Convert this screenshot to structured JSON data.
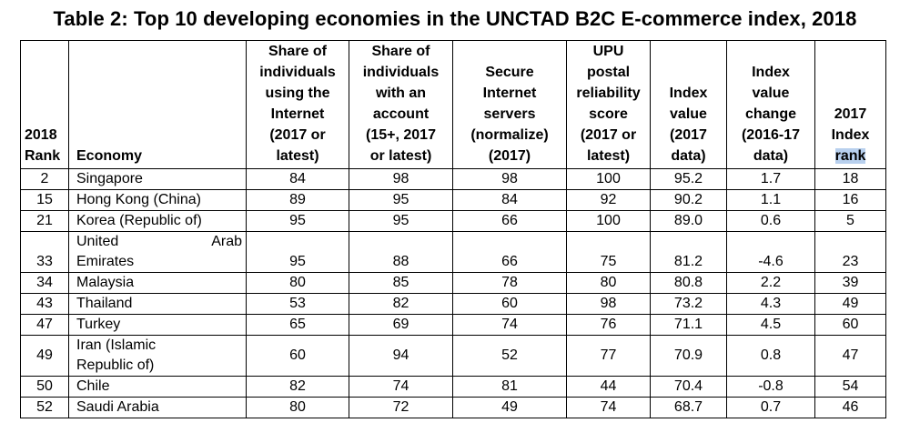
{
  "title": "Table 2: Top 10 developing economies in the UNCTAD B2C E-commerce index, 2018",
  "headers": {
    "rank_2018": [
      "2018",
      "Rank"
    ],
    "economy": "Economy",
    "internet_share": [
      "Share of",
      "individuals",
      "using the",
      "Internet",
      "(2017 or",
      "latest)"
    ],
    "account_share": [
      "Share of",
      "individuals",
      "with an",
      "account",
      "(15+, 2017",
      "or latest)"
    ],
    "secure_servers": [
      "Secure",
      "Internet",
      "servers",
      "(normalize)",
      "(2017)"
    ],
    "upu_score": [
      "UPU",
      "postal",
      "reliability",
      "score",
      "(2017 or",
      "latest)"
    ],
    "index_value": [
      "Index",
      "value",
      "(2017",
      "data)"
    ],
    "index_change": [
      "Index",
      "value",
      "change",
      "(2016-17",
      "data)"
    ],
    "rank_2017": [
      "2017",
      "Index"
    ],
    "rank_2017_highlight": "rank"
  },
  "rows": [
    {
      "rank": "2",
      "economy": [
        "Singapore"
      ],
      "internet": "84",
      "account": "98",
      "servers": "98",
      "upu": "100",
      "index": "95.2",
      "change": "1.7",
      "rank2017": "18"
    },
    {
      "rank": "15",
      "economy": [
        "Hong Kong (China)"
      ],
      "internet": "89",
      "account": "95",
      "servers": "84",
      "upu": "92",
      "index": "90.2",
      "change": "1.1",
      "rank2017": "16"
    },
    {
      "rank": "21",
      "economy": [
        "Korea (Republic of)"
      ],
      "internet": "95",
      "account": "95",
      "servers": "66",
      "upu": "100",
      "index": "89.0",
      "change": "0.6",
      "rank2017": "5"
    },
    {
      "rank": "33",
      "economy": [
        "United",
        "Arab",
        "Emirates"
      ],
      "internet": "95",
      "account": "88",
      "servers": "66",
      "upu": "75",
      "index": "81.2",
      "change": "-4.6",
      "rank2017": "23"
    },
    {
      "rank": "34",
      "economy": [
        "Malaysia"
      ],
      "internet": "80",
      "account": "85",
      "servers": "78",
      "upu": "80",
      "index": "80.8",
      "change": "2.2",
      "rank2017": "39"
    },
    {
      "rank": "43",
      "economy": [
        "Thailand"
      ],
      "internet": "53",
      "account": "82",
      "servers": "60",
      "upu": "98",
      "index": "73.2",
      "change": "4.3",
      "rank2017": "49"
    },
    {
      "rank": "47",
      "economy": [
        "Turkey"
      ],
      "internet": "65",
      "account": "69",
      "servers": "74",
      "upu": "76",
      "index": "71.1",
      "change": "4.5",
      "rank2017": "60"
    },
    {
      "rank": "49",
      "economy": [
        "Iran (Islamic",
        "Republic of)"
      ],
      "internet": "60",
      "account": "94",
      "servers": "52",
      "upu": "77",
      "index": "70.9",
      "change": "0.8",
      "rank2017": "47"
    },
    {
      "rank": "50",
      "economy": [
        "Chile"
      ],
      "internet": "82",
      "account": "74",
      "servers": "81",
      "upu": "44",
      "index": "70.4",
      "change": "-0.8",
      "rank2017": "54"
    },
    {
      "rank": "52",
      "economy": [
        "Saudi Arabia"
      ],
      "internet": "80",
      "account": "72",
      "servers": "49",
      "upu": "74",
      "index": "68.7",
      "change": "0.7",
      "rank2017": "46"
    }
  ]
}
